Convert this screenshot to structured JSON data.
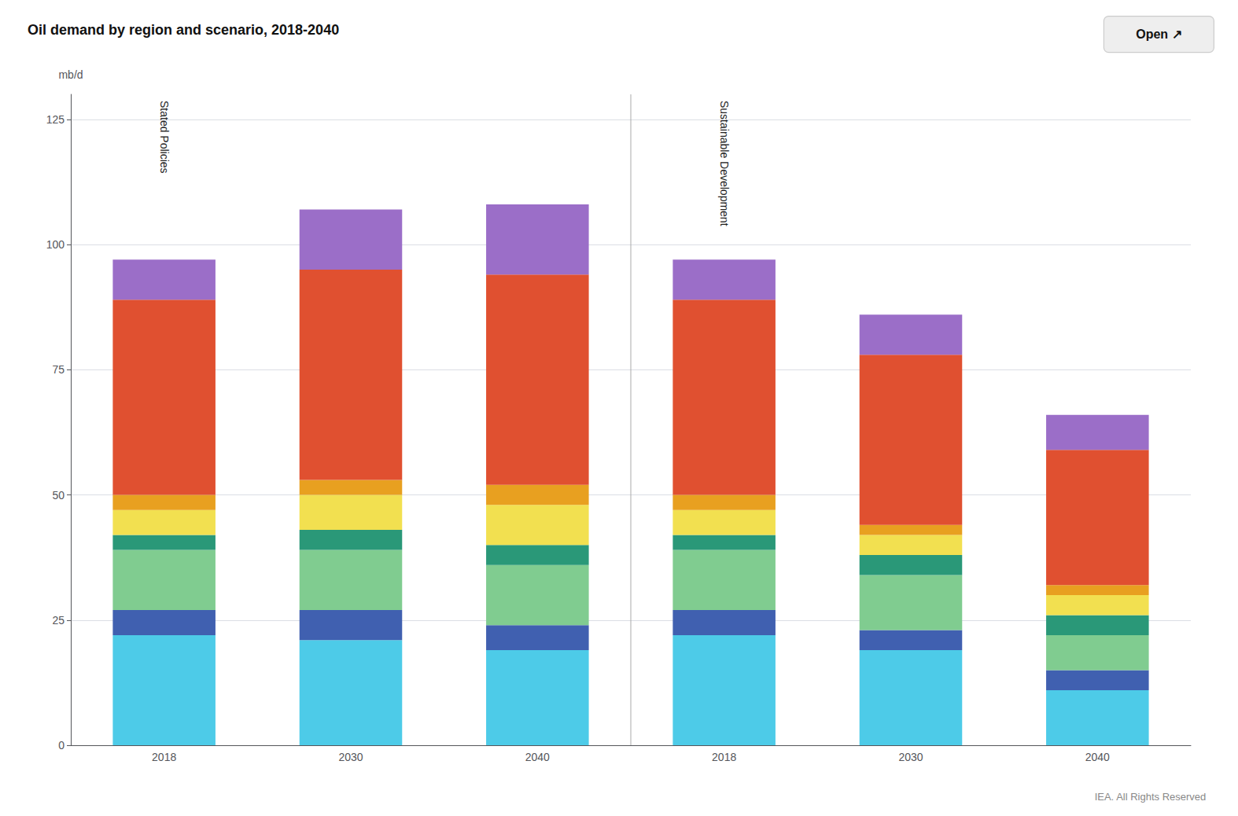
{
  "chart_data": {
    "type": "bar",
    "title": "Oil demand by region and scenario, 2018-2040",
    "ylabel": "mb/d",
    "categories": [
      "2018",
      "2030",
      "2040",
      "2018",
      "2030",
      "2040"
    ],
    "series": [
      {
        "color": "#4DCBE8",
        "values": [
          22,
          21,
          19,
          22,
          19,
          11
        ]
      },
      {
        "color": "#4060B0",
        "values": [
          5,
          6,
          5,
          5,
          4,
          4
        ]
      },
      {
        "color": "#80CC90",
        "values": [
          12,
          12,
          12,
          12,
          11,
          7
        ]
      },
      {
        "color": "#2A9878",
        "values": [
          3,
          4,
          4,
          3,
          4,
          4
        ]
      },
      {
        "color": "#F2E050",
        "values": [
          5,
          7,
          8,
          5,
          4,
          4
        ]
      },
      {
        "color": "#E8A020",
        "values": [
          3,
          3,
          4,
          3,
          2,
          2
        ]
      },
      {
        "color": "#E05030",
        "values": [
          39,
          42,
          42,
          39,
          34,
          27
        ]
      },
      {
        "color": "#9B6EC8",
        "values": [
          8,
          12,
          14,
          8,
          8,
          7
        ]
      }
    ],
    "stacked": true,
    "ylim": [
      0,
      130
    ],
    "yticks": [
      0,
      25,
      50,
      75,
      100,
      125
    ],
    "grid": true,
    "annotations": [
      "Stated Policies",
      "Sustainable Development"
    ],
    "button": "Open ↗",
    "footer": "IEA. All Rights Reserved"
  }
}
